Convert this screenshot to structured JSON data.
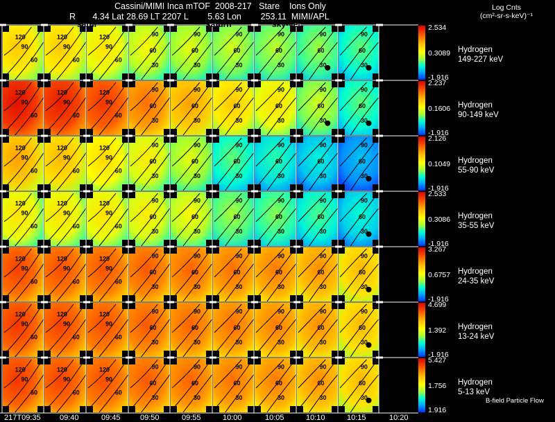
{
  "header": {
    "title": "Cassini/MIMI Inca mTOF  2008-217   Stare    Ions Only",
    "coord_line": "R       4.34 Lat 28.69 LT 2207 L        5.63 Lon        253.11  MIMI/APL",
    "units_line1": "Log Cnts",
    "units_line2": "(cm²-sr-s-keV)⁻¹",
    "overlay_labels": [
      "satur",
      "saturn",
      "sky-vel"
    ]
  },
  "time_labels": [
    "217T09:35",
    "09:40",
    "09:45",
    "09:50",
    "09:55",
    "10:00",
    "10:05",
    "10:10",
    "10:15",
    "10:20"
  ],
  "rows": [
    {
      "species": "Hydrogen",
      "energy": "149-227 keV",
      "cmax": "2.534",
      "cmid": "0.3089",
      "cmin": "-1.916",
      "intensity": [
        0.55,
        0.55,
        0.5,
        0.45,
        0.42,
        0.4,
        0.38,
        0.35,
        0.3
      ]
    },
    {
      "species": "Hydrogen",
      "energy": "90-149 keV",
      "cmax": "2.237",
      "cmid": "0.1606",
      "cmin": "-1.916",
      "intensity": [
        0.88,
        0.85,
        0.8,
        0.7,
        0.62,
        0.55,
        0.5,
        0.4,
        0.3
      ]
    },
    {
      "species": "Hydrogen",
      "energy": "55-90 keV",
      "cmax": "2.126",
      "cmid": "0.1049",
      "cmin": "-1.916",
      "intensity": [
        0.62,
        0.58,
        0.52,
        0.48,
        0.42,
        0.3,
        0.25,
        0.2,
        0.12
      ]
    },
    {
      "species": "Hydrogen",
      "energy": "35-55 keV",
      "cmax": "2.533",
      "cmid": "0.3086",
      "cmin": "-1.916",
      "intensity": [
        0.5,
        0.5,
        0.5,
        0.48,
        0.45,
        0.36,
        0.33,
        0.28,
        0.22
      ]
    },
    {
      "species": "Hydrogen",
      "energy": "24-35 keV",
      "cmax": "3.267",
      "cmid": "0.6757",
      "cmin": "-1.916",
      "intensity": [
        0.78,
        0.76,
        0.75,
        0.74,
        0.72,
        0.7,
        0.68,
        0.65,
        0.58
      ]
    },
    {
      "species": "Hydrogen",
      "energy": "13-24 keV",
      "cmax": "4.699",
      "cmid": "1.392",
      "cmin": "-1.916",
      "intensity": [
        0.8,
        0.78,
        0.76,
        0.74,
        0.72,
        0.7,
        0.68,
        0.65,
        0.58
      ]
    },
    {
      "species": "Hydrogen",
      "energy": "5-13 keV",
      "cmax": "5.427",
      "cmid": "1.756",
      "cmin": "1.916",
      "intensity": [
        0.8,
        0.78,
        0.76,
        0.74,
        0.72,
        0.7,
        0.68,
        0.65,
        0.58
      ]
    }
  ],
  "contour_labels": [
    "120",
    "90",
    "60",
    "30"
  ],
  "legend": {
    "bfield": "B-field Particle Flow"
  }
}
